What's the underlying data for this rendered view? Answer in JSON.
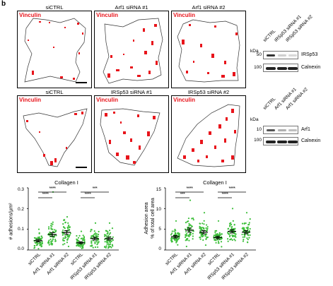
{
  "panel_letter": "b",
  "row1": {
    "titles": [
      "siCTRL",
      "Arf1 siRNA #1",
      "Arf1 siRNA #2"
    ],
    "stain": "Vinculin"
  },
  "row2": {
    "titles": [
      "siCTRL",
      "IRSp53 siRNA #1",
      "IRSp53 siRNA #2"
    ],
    "stain": "Vinculin"
  },
  "blot1": {
    "kda": "kDa",
    "lanes": [
      "siCTRL",
      "IRSp53 siRNA #1",
      "IRSp53 siRNA #2"
    ],
    "markers": [
      "50",
      "100"
    ],
    "proteins": [
      "IRSp53",
      "Calnexin"
    ]
  },
  "blot2": {
    "kda": "kDa",
    "lanes": [
      "siCTRL",
      "Arf1 siRNA #1",
      "Arf1 siRNA #2"
    ],
    "markers": [
      "10",
      "100"
    ],
    "proteins": [
      "Arf1",
      "Calnexin"
    ]
  },
  "colors": {
    "stain": "#e8141b",
    "points": "#3dbf3a",
    "outline": "#333333"
  },
  "chart_data": [
    {
      "type": "scatter",
      "title": "Collagen I",
      "ylabel": "# adhesions/µm²",
      "ylim": [
        0,
        0.3
      ],
      "yticks": [
        "0.0",
        "0.1",
        "0.2",
        "0.3"
      ],
      "categories": [
        "siCTRL",
        "Arf1 siRNA #1",
        "Arf1 siRNA #2",
        "siCTRL",
        "IRSp53 siRNA #1",
        "IRSp53 siRNA #2"
      ],
      "means": [
        0.045,
        0.075,
        0.085,
        0.035,
        0.055,
        0.055
      ],
      "sem": [
        0.006,
        0.009,
        0.009,
        0.005,
        0.007,
        0.007
      ],
      "spread": [
        0.03,
        0.045,
        0.045,
        0.025,
        0.035,
        0.035
      ],
      "max": [
        0.1,
        0.28,
        0.16,
        0.09,
        0.13,
        0.13
      ],
      "significance": [
        {
          "from": 0,
          "to": 2,
          "label": "****"
        },
        {
          "from": 0,
          "to": 1,
          "label": "****"
        },
        {
          "from": 3,
          "to": 5,
          "label": "***"
        },
        {
          "from": 3,
          "to": 4,
          "label": "****"
        }
      ]
    },
    {
      "type": "scatter",
      "title": "Collagen I",
      "ylabel": "Adhesion area\n% of total cell area",
      "ylim": [
        0,
        15
      ],
      "yticks": [
        "0",
        "5",
        "10",
        "15"
      ],
      "categories": [
        "siCTRL",
        "Arf1 siRNA #1",
        "Arf1 siRNA #2",
        "siCTRL",
        "IRSp53 siRNA #1",
        "IRSp53 siRNA #2"
      ],
      "means": [
        3.2,
        4.8,
        4.3,
        3.0,
        4.5,
        4.3
      ],
      "sem": [
        0.3,
        0.5,
        0.4,
        0.3,
        0.4,
        0.4
      ],
      "spread": [
        1.5,
        2.5,
        2.0,
        1.4,
        2.0,
        2.0
      ],
      "max": [
        7,
        12,
        9,
        7,
        10,
        9
      ],
      "significance": [
        {
          "from": 0,
          "to": 2,
          "label": "****"
        },
        {
          "from": 0,
          "to": 1,
          "label": "***"
        },
        {
          "from": 3,
          "to": 5,
          "label": "****"
        },
        {
          "from": 3,
          "to": 4,
          "label": "****"
        }
      ]
    }
  ]
}
